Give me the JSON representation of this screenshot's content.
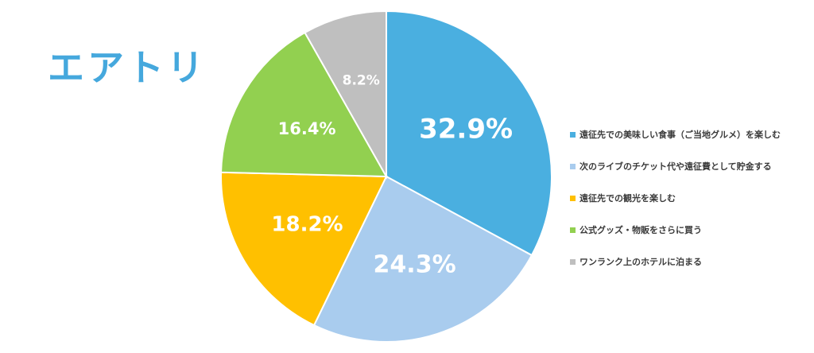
{
  "logo": {
    "text": "エアトリ",
    "color": "#45a8dd"
  },
  "chart_data": {
    "type": "pie",
    "title": "",
    "legend_position": "right",
    "slices": [
      {
        "label": "遠征先での美味しい食事（ご当地グルメ）を楽しむ",
        "value": 32.9,
        "display": "32.9%",
        "color": "#4aafe0"
      },
      {
        "label": "次のライブのチケット代や遠征費として貯金する",
        "value": 24.3,
        "display": "24.3%",
        "color": "#a9ccee"
      },
      {
        "label": "遠征先での観光を楽しむ",
        "value": 18.2,
        "display": "18.2%",
        "color": "#ffc000"
      },
      {
        "label": "公式グッズ・物販をさらに買う",
        "value": 16.4,
        "display": "16.4%",
        "color": "#92d050"
      },
      {
        "label": "ワンランク上のホテルに泊まる",
        "value": 8.2,
        "display": "8.2%",
        "color": "#bfbfbf"
      }
    ]
  }
}
